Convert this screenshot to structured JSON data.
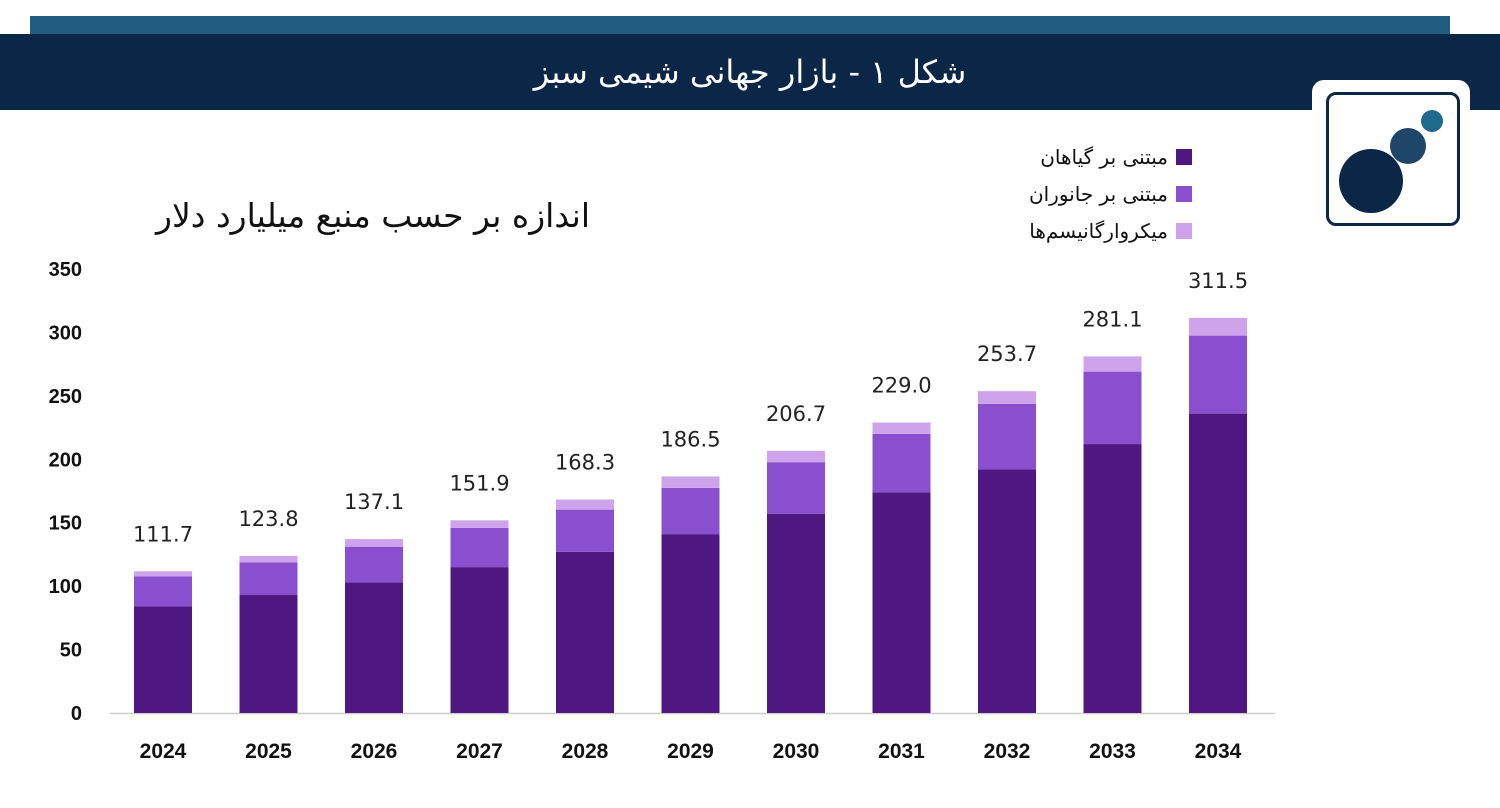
{
  "header": {
    "title": "شکل ۱ - بازار جهانی شیمی سبز"
  },
  "colors": {
    "header_bg": "#0c2647",
    "header_strip": "#1f5c80",
    "plants": "#4f1782",
    "animals": "#8a4fcf",
    "microorganisms": "#cfa3ec"
  },
  "logo": {
    "icon": "three-circles-logo-icon"
  },
  "chart_data": {
    "type": "bar",
    "stacked": true,
    "title": "اندازه بر حسب منبع    میلیارد دلار",
    "categories": [
      "2024",
      "2025",
      "2026",
      "2027",
      "2028",
      "2029",
      "2030",
      "2031",
      "2032",
      "2033",
      "2034"
    ],
    "series": [
      {
        "name": "مبتنی بر گیاهان",
        "values": [
          84,
          93,
          103,
          115,
          127,
          141,
          157,
          174,
          192,
          212,
          236
        ]
      },
      {
        "name": "مبتنی بر جانوران",
        "values": [
          23.7,
          25.8,
          28.1,
          30.9,
          33.3,
          36.5,
          40.7,
          46.0,
          51.7,
          57.1,
          61.5
        ]
      },
      {
        "name": "میکروارگانیسم‌ها",
        "values": [
          4,
          5,
          6,
          6,
          8,
          9,
          9,
          9,
          10,
          12,
          14
        ]
      }
    ],
    "totals": [
      "111.7",
      "123.8",
      "137.1",
      "151.9",
      "168.3",
      "186.5",
      "206.7",
      "229.0",
      "253.7",
      "281.1",
      "311.5"
    ],
    "yticks": [
      "0",
      "50",
      "100",
      "150",
      "200",
      "250",
      "300",
      "350"
    ],
    "ylim": [
      0,
      350
    ],
    "grid": false,
    "legend": "top-right"
  }
}
